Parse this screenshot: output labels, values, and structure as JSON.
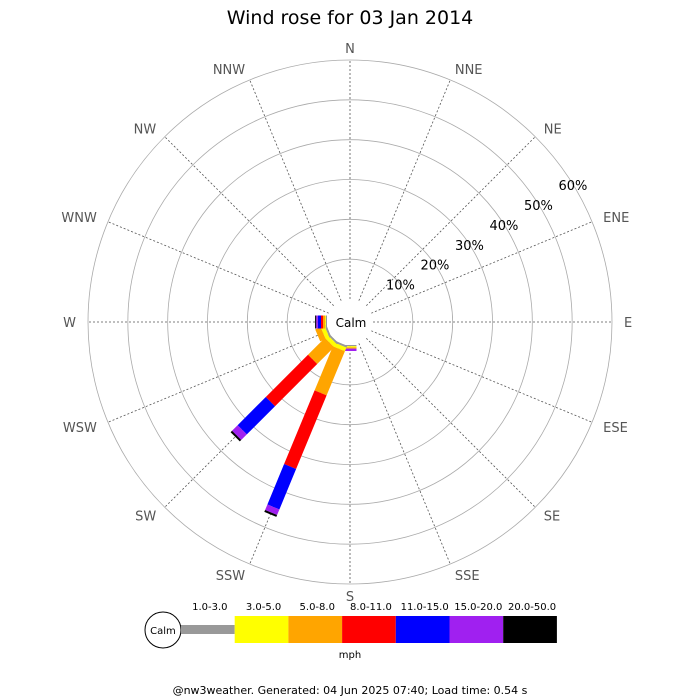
{
  "chart_data": {
    "type": "wind-rose",
    "title": "Wind rose for 03 Jan 2014",
    "directions": [
      "N",
      "NNE",
      "NE",
      "ENE",
      "E",
      "ESE",
      "SE",
      "SSE",
      "S",
      "SSW",
      "SW",
      "WSW",
      "W",
      "WNW",
      "NW",
      "NNW"
    ],
    "radial_ticks": [
      "10%",
      "20%",
      "30%",
      "40%",
      "50%",
      "60%"
    ],
    "rlim": [
      0,
      60
    ],
    "calm_label": "Calm",
    "speed_bins": [
      {
        "label": "1.0-3.0",
        "color": "#999999"
      },
      {
        "label": "3.0-5.0",
        "color": "#ffff00"
      },
      {
        "label": "5.0-8.0",
        "color": "#ffa500"
      },
      {
        "label": "8.0-11.0",
        "color": "#ff0000"
      },
      {
        "label": "11.0-15.0",
        "color": "#0000ff"
      },
      {
        "label": "15.0-20.0",
        "color": "#a020f0"
      },
      {
        "label": "20.0-50.0",
        "color": "#000000"
      }
    ],
    "unit": "mph",
    "series": [
      {
        "direction": "S",
        "values": [
          0.3,
          0.3,
          0.3,
          0.0,
          0.0,
          0.6,
          0.0
        ]
      },
      {
        "direction": "SSW",
        "values": [
          0.5,
          1.0,
          12.0,
          20.0,
          11.0,
          1.5,
          0.5
        ]
      },
      {
        "direction": "SW",
        "values": [
          0.5,
          1.0,
          6.0,
          15.0,
          10.0,
          2.0,
          0.5
        ]
      },
      {
        "direction": "WSW",
        "values": [
          0.5,
          1.0,
          1.5,
          0.0,
          0.0,
          0.0,
          0.0
        ]
      },
      {
        "direction": "W",
        "values": [
          0.3,
          0.2,
          0.5,
          0.5,
          0.8,
          0.4,
          0.3
        ]
      }
    ]
  },
  "footer": "@nw3weather. Generated: 04 Jun 2025 07:40; Load time: 0.54 s"
}
